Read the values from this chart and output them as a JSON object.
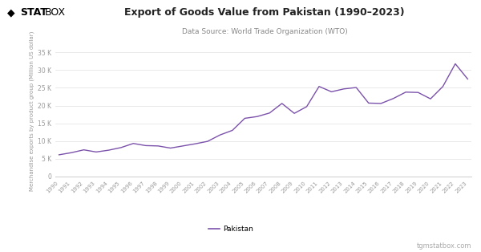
{
  "title": "Export of Goods Value from Pakistan (1990–2023)",
  "subtitle": "Data Source: World Trade Organization (WTO)",
  "ylabel": "Merchandise exports by product group (Million US dollar)",
  "legend_label": "Pakistan",
  "line_color": "#7b52ab",
  "background_color": "#ffffff",
  "plot_bg_color": "#ffffff",
  "years": [
    1990,
    1991,
    1992,
    1993,
    1994,
    1995,
    1996,
    1997,
    1998,
    1999,
    2000,
    2001,
    2002,
    2003,
    2004,
    2005,
    2006,
    2007,
    2008,
    2009,
    2010,
    2011,
    2012,
    2013,
    2014,
    2015,
    2016,
    2017,
    2018,
    2019,
    2020,
    2021,
    2022,
    2023
  ],
  "values": [
    6100,
    6700,
    7500,
    6900,
    7400,
    8137,
    9300,
    8700,
    8600,
    8000,
    8600,
    9202,
    9900,
    11700,
    13000,
    16400,
    16900,
    17900,
    20600,
    17800,
    19700,
    25400,
    23900,
    24700,
    25100,
    20700,
    20600,
    22000,
    23800,
    23700,
    21900,
    25400,
    31800,
    27500
  ],
  "ylim": [
    0,
    37000
  ],
  "yticks": [
    0,
    5000,
    10000,
    15000,
    20000,
    25000,
    30000,
    35000
  ],
  "ytick_labels": [
    "0",
    "5 K",
    "10 K",
    "15 K",
    "20 K",
    "25 K",
    "30 K",
    "35 K"
  ],
  "watermark": "tgmstatbox.com",
  "grid_color": "#e0e0e0",
  "tick_color": "#999999",
  "title_color": "#222222",
  "subtitle_color": "#888888",
  "logo_diamond": "◆",
  "logo_stat": "STAT",
  "logo_box": "BOX"
}
